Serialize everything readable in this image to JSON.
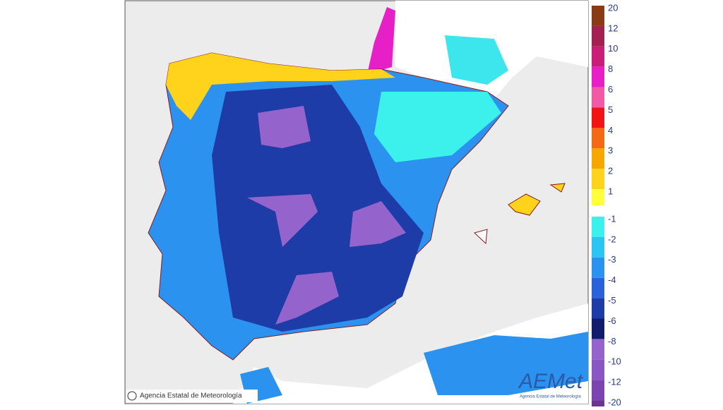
{
  "map": {
    "legend": [
      {
        "label": "20",
        "color": "#8a3b16"
      },
      {
        "label": "12",
        "color": "#a3204f"
      },
      {
        "label": "10",
        "color": "#c81e78"
      },
      {
        "label": "8",
        "color": "#e61fc6"
      },
      {
        "label": "6",
        "color": "#f25aa6"
      },
      {
        "label": "5",
        "color": "#f01414"
      },
      {
        "label": "4",
        "color": "#f46a12"
      },
      {
        "label": "3",
        "color": "#f7a800"
      },
      {
        "label": "2",
        "color": "#ffd21c"
      },
      {
        "label": "1",
        "color": "#ffff3c"
      },
      {
        "label": "-1",
        "color": "#3cf0ec"
      },
      {
        "label": "-2",
        "color": "#2cc4f2"
      },
      {
        "label": "-3",
        "color": "#2c92f0"
      },
      {
        "label": "-4",
        "color": "#2a62dc"
      },
      {
        "label": "-5",
        "color": "#1e3ca8"
      },
      {
        "label": "-6",
        "color": "#121c6c"
      },
      {
        "label": "-8",
        "color": "#9464cc"
      },
      {
        "label": "-10",
        "color": "#8a56c4"
      },
      {
        "label": "-12",
        "color": "#7c44b0"
      },
      {
        "label": "-20",
        "color": "#6a3494"
      }
    ],
    "copyright": "Agencia Estatal de Meteorología",
    "logo": "AEMet",
    "logo_subtitle": "Agencia Estatal de Meteorología"
  }
}
